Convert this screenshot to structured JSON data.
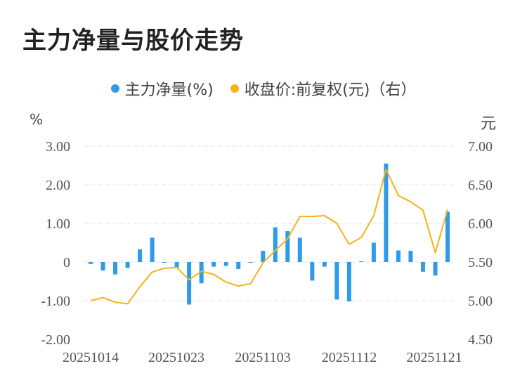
{
  "title": "主力净量与股价走势",
  "legend": {
    "series1": "主力净量(%)",
    "series2": "收盘价:前复权(元)（右）"
  },
  "units": {
    "left": "%",
    "right": "元"
  },
  "colors": {
    "bar": "#2E9BEA",
    "line": "#F2B418",
    "grid": "#E3E3E3"
  },
  "chart_data": {
    "type": "bar+line",
    "x_labels": [
      "20251014",
      "20251023",
      "20251103",
      "20251112",
      "20251121"
    ],
    "left_axis": {
      "ticks": [
        "3.00",
        "2.00",
        "1.00",
        "0",
        "-1.00",
        "-2.00"
      ],
      "ylim": [
        -2,
        3
      ]
    },
    "right_axis": {
      "ticks": [
        "7.00",
        "6.50",
        "6.00",
        "5.50",
        "5.00",
        "4.50"
      ],
      "ylim": [
        4.5,
        7
      ]
    },
    "series": [
      {
        "name": "主力净量(%)",
        "type": "bar",
        "values": [
          -0.05,
          -0.22,
          -0.32,
          -0.15,
          0.33,
          0.63,
          0.0,
          -0.15,
          -1.1,
          -0.55,
          -0.12,
          -0.1,
          -0.18,
          0.0,
          0.29,
          0.9,
          0.8,
          0.63,
          -0.48,
          -0.12,
          -0.97,
          -1.02,
          0.02,
          0.5,
          2.55,
          0.3,
          0.29,
          -0.25,
          -0.35,
          1.3
        ]
      },
      {
        "name": "收盘价:前复权(元)（右）",
        "type": "line",
        "values": [
          5.0,
          5.04,
          4.98,
          4.96,
          5.18,
          5.37,
          5.42,
          5.43,
          5.27,
          5.38,
          5.34,
          5.24,
          5.19,
          5.22,
          5.49,
          5.65,
          5.8,
          6.09,
          6.09,
          6.1,
          6.0,
          5.73,
          5.82,
          6.1,
          6.7,
          6.36,
          6.28,
          6.17,
          5.62,
          6.18
        ]
      }
    ]
  }
}
